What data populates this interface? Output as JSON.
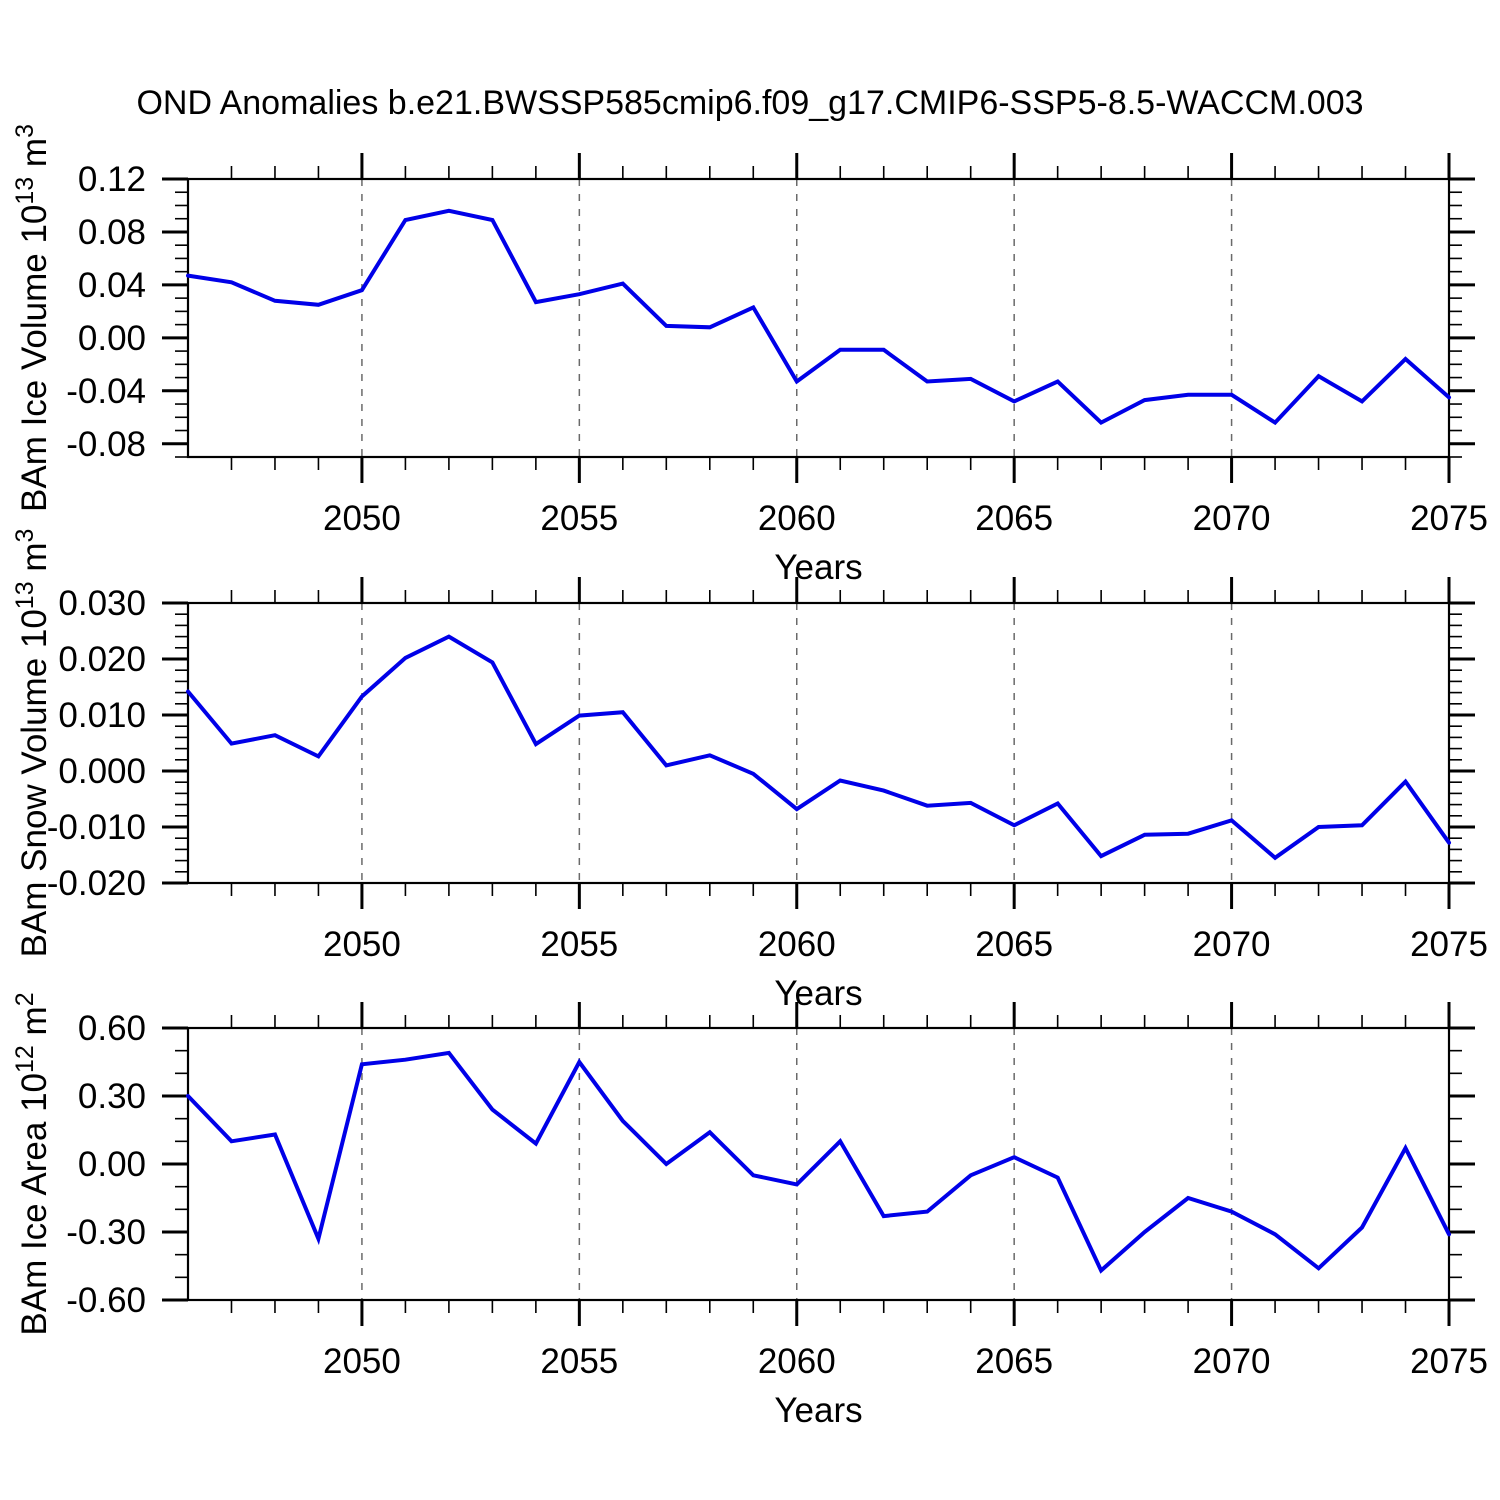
{
  "figure": {
    "title": "OND Anomalies b.e21.BWSSP585cmip6.f09_g17.CMIP6-SSP5-8.5-WACCM.003"
  },
  "style": {
    "line_color": "#0000e8",
    "axis_color": "#000000",
    "grid_color": "#6a6a6a",
    "text_color": "#000000",
    "background_color": "#ffffff"
  },
  "chart_data": [
    {
      "type": "line",
      "panel": 1,
      "ylabel": "BAm Ice Volume 10^13 m^3",
      "ylabel_parts": [
        {
          "text": "BAm Ice Volume 10",
          "super": false
        },
        {
          "text": "13",
          "super": true
        },
        {
          "text": " m",
          "super": false
        },
        {
          "text": "3",
          "super": true
        }
      ],
      "xlabel": "Years",
      "xlim": [
        2046,
        2075
      ],
      "ylim": [
        -0.09,
        0.12
      ],
      "grid": "vertical-dashed",
      "grid_years": [
        2050,
        2055,
        2060,
        2065,
        2070
      ],
      "xticks": [
        {
          "value": 2050,
          "label": "2050"
        },
        {
          "value": 2055,
          "label": "2055"
        },
        {
          "value": 2060,
          "label": "2060"
        },
        {
          "value": 2065,
          "label": "2065"
        },
        {
          "value": 2070,
          "label": "2070"
        },
        {
          "value": 2075,
          "label": "2075"
        }
      ],
      "xminor_step": 1,
      "yticks": [
        {
          "value": 0.12,
          "label": "0.12"
        },
        {
          "value": 0.08,
          "label": "0.08"
        },
        {
          "value": 0.04,
          "label": "0.04"
        },
        {
          "value": 0.0,
          "label": "0.00"
        },
        {
          "value": -0.04,
          "label": "-0.04"
        },
        {
          "value": -0.08,
          "label": "-0.08"
        }
      ],
      "yminor_step": 0.01,
      "x": [
        2046,
        2047,
        2048,
        2049,
        2050,
        2051,
        2052,
        2053,
        2054,
        2055,
        2056,
        2057,
        2058,
        2059,
        2060,
        2061,
        2062,
        2063,
        2064,
        2065,
        2066,
        2067,
        2068,
        2069,
        2070,
        2071,
        2072,
        2073,
        2074,
        2075
      ],
      "values": [
        0.047,
        0.042,
        0.028,
        0.025,
        0.036,
        0.089,
        0.096,
        0.089,
        0.027,
        0.033,
        0.041,
        0.009,
        0.008,
        0.023,
        -0.033,
        -0.009,
        -0.009,
        -0.033,
        -0.031,
        -0.048,
        -0.033,
        -0.064,
        -0.047,
        -0.043,
        -0.043,
        -0.064,
        -0.029,
        -0.048,
        -0.016,
        -0.045
      ]
    },
    {
      "type": "line",
      "panel": 2,
      "ylabel": "BAm Snow Volume 10^13 m^3",
      "ylabel_parts": [
        {
          "text": "BAm Snow Volume 10",
          "super": false
        },
        {
          "text": "13",
          "super": true
        },
        {
          "text": " m",
          "super": false
        },
        {
          "text": "3",
          "super": true
        }
      ],
      "xlabel": "Years",
      "xlim": [
        2046,
        2075
      ],
      "ylim": [
        -0.02,
        0.03
      ],
      "grid": "vertical-dashed",
      "grid_years": [
        2050,
        2055,
        2060,
        2065,
        2070
      ],
      "xticks": [
        {
          "value": 2050,
          "label": "2050"
        },
        {
          "value": 2055,
          "label": "2055"
        },
        {
          "value": 2060,
          "label": "2060"
        },
        {
          "value": 2065,
          "label": "2065"
        },
        {
          "value": 2070,
          "label": "2070"
        },
        {
          "value": 2075,
          "label": "2075"
        }
      ],
      "xminor_step": 1,
      "yticks": [
        {
          "value": 0.03,
          "label": "0.030"
        },
        {
          "value": 0.02,
          "label": "0.020"
        },
        {
          "value": 0.01,
          "label": "0.010"
        },
        {
          "value": 0.0,
          "label": "0.000"
        },
        {
          "value": -0.01,
          "label": "-0.010"
        },
        {
          "value": -0.02,
          "label": "-0.020"
        }
      ],
      "yminor_step": 0.002,
      "x": [
        2046,
        2047,
        2048,
        2049,
        2050,
        2051,
        2052,
        2053,
        2054,
        2055,
        2056,
        2057,
        2058,
        2059,
        2060,
        2061,
        2062,
        2063,
        2064,
        2065,
        2066,
        2067,
        2068,
        2069,
        2070,
        2071,
        2072,
        2073,
        2074,
        2075
      ],
      "values": [
        0.0142,
        0.0049,
        0.0064,
        0.0026,
        0.0133,
        0.0202,
        0.024,
        0.0194,
        0.0048,
        0.0099,
        0.0105,
        0.001,
        0.0028,
        -0.0005,
        -0.0068,
        -0.0017,
        -0.0035,
        -0.0062,
        -0.0057,
        -0.0097,
        -0.0058,
        -0.0152,
        -0.0114,
        -0.0112,
        -0.0088,
        -0.0155,
        -0.01,
        -0.0097,
        -0.0019,
        -0.0128
      ]
    },
    {
      "type": "line",
      "panel": 3,
      "ylabel": "BAm Ice Area 10^12 m^2",
      "ylabel_parts": [
        {
          "text": "BAm Ice Area 10",
          "super": false
        },
        {
          "text": "12",
          "super": true
        },
        {
          "text": " m",
          "super": false
        },
        {
          "text": "2",
          "super": true
        }
      ],
      "xlabel": "Years",
      "xlim": [
        2046,
        2075
      ],
      "ylim": [
        -0.6,
        0.6
      ],
      "grid": "vertical-dashed",
      "grid_years": [
        2050,
        2055,
        2060,
        2065,
        2070
      ],
      "xticks": [
        {
          "value": 2050,
          "label": "2050"
        },
        {
          "value": 2055,
          "label": "2055"
        },
        {
          "value": 2060,
          "label": "2060"
        },
        {
          "value": 2065,
          "label": "2065"
        },
        {
          "value": 2070,
          "label": "2070"
        },
        {
          "value": 2075,
          "label": "2075"
        }
      ],
      "xminor_step": 1,
      "yticks": [
        {
          "value": 0.6,
          "label": "0.60"
        },
        {
          "value": 0.3,
          "label": "0.30"
        },
        {
          "value": 0.0,
          "label": "0.00"
        },
        {
          "value": -0.3,
          "label": "-0.30"
        },
        {
          "value": -0.6,
          "label": "-0.60"
        }
      ],
      "yminor_step": 0.1,
      "x": [
        2046,
        2047,
        2048,
        2049,
        2050,
        2051,
        2052,
        2053,
        2054,
        2055,
        2056,
        2057,
        2058,
        2059,
        2060,
        2061,
        2062,
        2063,
        2064,
        2065,
        2066,
        2067,
        2068,
        2069,
        2070,
        2071,
        2072,
        2073,
        2074,
        2075
      ],
      "values": [
        0.3,
        0.1,
        0.13,
        -0.33,
        0.44,
        0.46,
        0.49,
        0.24,
        0.09,
        0.45,
        0.19,
        0.0,
        0.14,
        -0.05,
        -0.09,
        0.1,
        -0.23,
        -0.21,
        -0.05,
        0.03,
        -0.06,
        -0.47,
        -0.3,
        -0.15,
        -0.21,
        -0.31,
        -0.46,
        -0.28,
        0.07,
        -0.31
      ]
    }
  ]
}
